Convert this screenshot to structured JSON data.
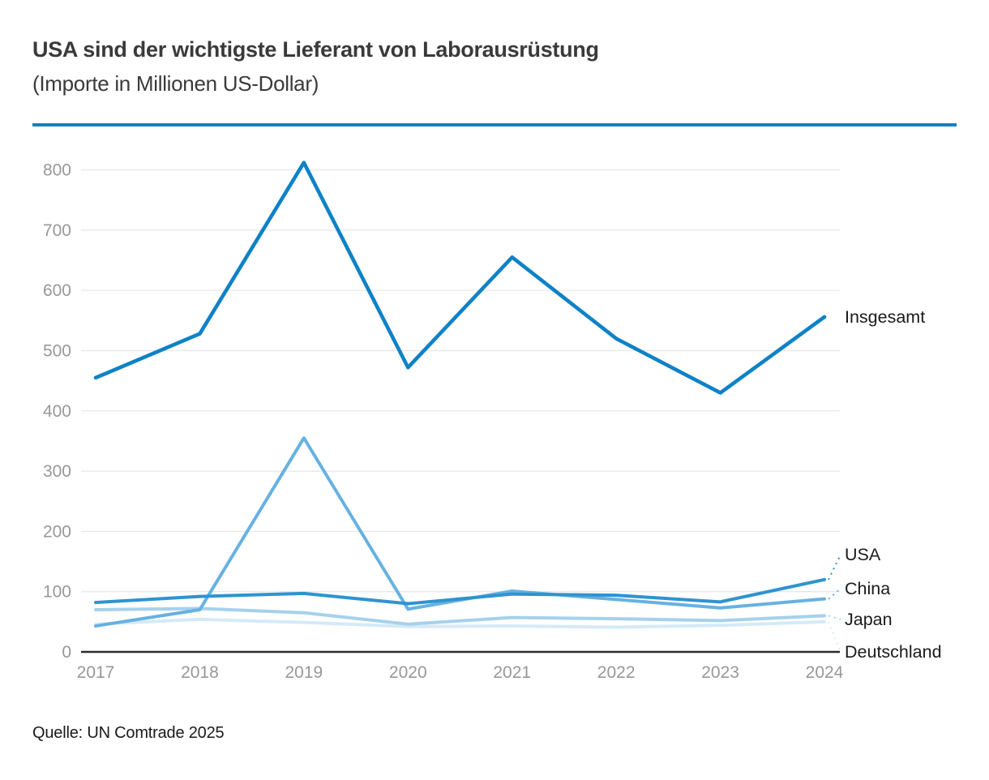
{
  "accent_color": "#0e82c6",
  "chart_data": {
    "type": "line",
    "title": "USA sind der wichtigste Lieferant von Laborausrüstung",
    "subtitle": "(Importe in Millionen US-Dollar)",
    "source": "Quelle: UN Comtrade 2025",
    "categories": [
      "2017",
      "2018",
      "2019",
      "2020",
      "2021",
      "2022",
      "2023",
      "2024"
    ],
    "series": [
      {
        "name": "Insgesamt",
        "color": "#0e82c6",
        "values": [
          455,
          528,
          812,
          472,
          655,
          520,
          430,
          556
        ]
      },
      {
        "name": "USA",
        "color": "#2f93d0",
        "values": [
          82,
          92,
          97,
          80,
          96,
          94,
          83,
          120
        ]
      },
      {
        "name": "China",
        "color": "#67b1e2",
        "values": [
          43,
          70,
          355,
          71,
          101,
          87,
          73,
          88
        ]
      },
      {
        "name": "Japan",
        "color": "#a6d1ec",
        "values": [
          70,
          72,
          65,
          46,
          57,
          55,
          52,
          60
        ]
      },
      {
        "name": "Deutschland",
        "color": "#d5eaf8",
        "values": [
          46,
          54,
          49,
          42,
          43,
          41,
          44,
          50
        ]
      }
    ],
    "yticks": [
      0,
      100,
      200,
      300,
      400,
      500,
      600,
      700,
      800
    ],
    "ylim": [
      0,
      860
    ],
    "xlabel": "",
    "ylabel": "",
    "grid": true,
    "legend_position": "labels-at-line-ends-right",
    "grid_color": "#e8e8e8",
    "axis_line_color": "#2b2b2b",
    "tick_label_color": "#989898",
    "series_label_color": "#1a1a1a"
  }
}
